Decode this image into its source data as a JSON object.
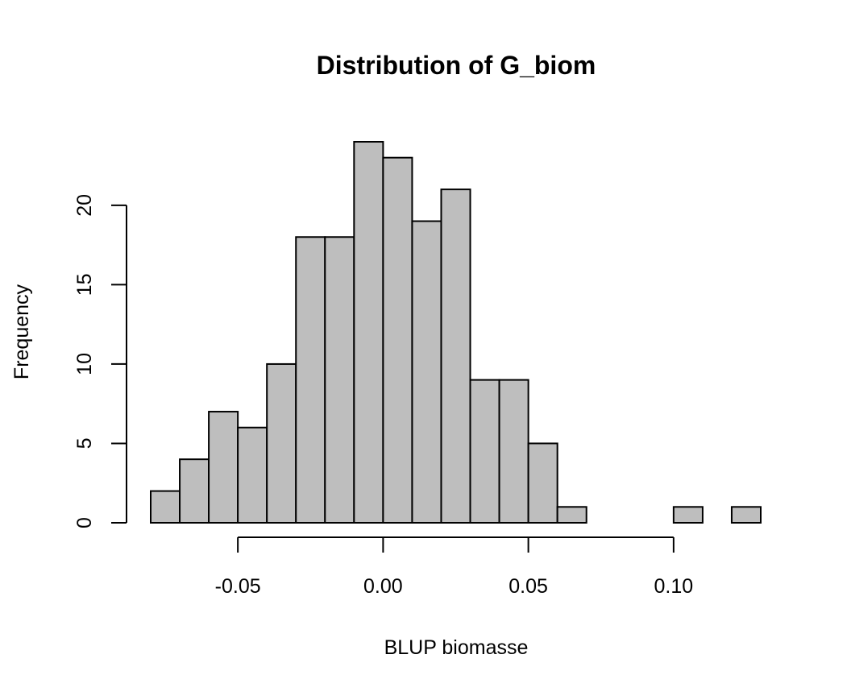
{
  "chart_data": {
    "type": "bar",
    "title": "Distribution of G_biom",
    "xlabel": "BLUP biomasse",
    "ylabel": "Frequency",
    "bin_start": -0.08,
    "bin_width": 0.01,
    "counts": [
      2,
      4,
      7,
      6,
      10,
      18,
      18,
      24,
      23,
      19,
      21,
      9,
      9,
      5,
      1,
      0,
      0,
      0,
      1,
      0,
      1
    ],
    "xlim": [
      -0.08,
      0.13
    ],
    "ylim": [
      0,
      24
    ],
    "x_ticks": [
      -0.05,
      0.0,
      0.05,
      0.1
    ],
    "x_tick_labels": [
      "-0.05",
      "0.00",
      "0.05",
      "0.10"
    ],
    "y_ticks": [
      0,
      5,
      10,
      15,
      20
    ],
    "y_tick_labels": [
      "0",
      "5",
      "10",
      "15",
      "20"
    ],
    "bar_color": "#bebebe",
    "bar_edge_color": "#000000",
    "grid": false,
    "legend": "none"
  }
}
